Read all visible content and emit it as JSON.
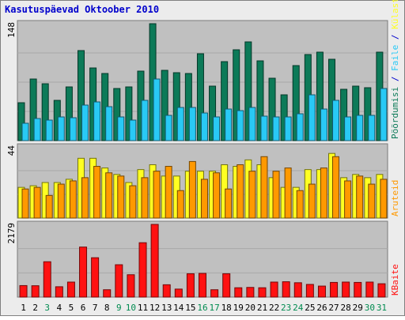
{
  "title": "Kasutuspäevad Oktoober 2010",
  "colors": {
    "background": "#ececec",
    "plot_bg": "#c0c0c0",
    "grid": "#a8a8a8",
    "title": "#0000cc",
    "dark_green": "#0c7a58",
    "cyan": "#29c9f5",
    "yellow": "#ffff22",
    "orange": "#ff9900",
    "red": "#ff1111",
    "weekend_label": "#008b50"
  },
  "chart_data": {
    "type": "bar",
    "x": [
      "1",
      "2",
      "3",
      "4",
      "5",
      "6",
      "7",
      "8",
      "9",
      "10",
      "11",
      "12",
      "13",
      "14",
      "15",
      "16",
      "17",
      "18",
      "19",
      "20",
      "21",
      "22",
      "23",
      "24",
      "25",
      "26",
      "27",
      "28",
      "29",
      "30",
      "31"
    ],
    "weekend_days": [
      "3",
      "9",
      "10",
      "16",
      "17",
      "23",
      "24",
      "30",
      "31"
    ],
    "panels": [
      {
        "ymax_label": "148",
        "ymax": 148,
        "right_labels": [
          {
            "text": "Pöördumisi",
            "color_key": "dark_green"
          },
          {
            "text": " / ",
            "color_key": "title"
          },
          {
            "text": "Faile",
            "color_key": "cyan"
          },
          {
            "text": " / ",
            "color_key": "title"
          },
          {
            "text": "Külastajaid",
            "color_key": "yellow"
          }
        ],
        "series": [
          {
            "color_key": "dark_green",
            "values": [
              48,
              78,
              72,
              51,
              68,
              114,
              92,
              85,
              66,
              68,
              88,
              148,
              89,
              86,
              85,
              110,
              69,
              100,
              115,
              125,
              101,
              79,
              58,
              95,
              109,
              112,
              103,
              65,
              69,
              67,
              112
            ]
          },
          {
            "color_key": "cyan",
            "values": [
              22,
              28,
              26,
              30,
              29,
              45,
              49,
              43,
              30,
              26,
              51,
              78,
              32,
              42,
              42,
              35,
              30,
              40,
              38,
              42,
              31,
              30,
              30,
              34,
              58,
              40,
              51,
              30,
              32,
              32,
              66
            ]
          }
        ]
      },
      {
        "ymax_label": "44",
        "ymax": 44,
        "right_labels": [
          {
            "text": "Aruteid",
            "color_key": "orange"
          }
        ],
        "series": [
          {
            "color_key": "yellow",
            "values": [
              19,
              20,
              22,
              22,
              24,
              37,
              37,
              31,
              27,
              22,
              30,
              33,
              26,
              26,
              29,
              29,
              29,
              33,
              32,
              36,
              33,
              25,
              19,
              19,
              30,
              30,
              40,
              25,
              27,
              25,
              27
            ]
          },
          {
            "color_key": "orange",
            "values": [
              18,
              19,
              14,
              21,
              23,
              25,
              32,
              28,
              26,
              20,
              25,
              29,
              32,
              17,
              35,
              24,
              28,
              18,
              33,
              29,
              38,
              29,
              31,
              17,
              21,
              31,
              38,
              23,
              26,
              21,
              24
            ]
          }
        ]
      },
      {
        "ymax_label": "2179",
        "ymax": 2179,
        "right_labels": [
          {
            "text": "KBaite",
            "color_key": "red"
          }
        ],
        "series": [
          {
            "color_key": "red",
            "values": [
              345,
              340,
              1060,
              310,
              450,
              1500,
              1180,
              220,
              970,
              670,
              1630,
              2179,
              370,
              240,
              700,
              710,
              220,
              700,
              280,
              290,
              280,
              450,
              460,
              430,
              380,
              330,
              440,
              450,
              440,
              450,
              400
            ]
          }
        ]
      }
    ]
  }
}
